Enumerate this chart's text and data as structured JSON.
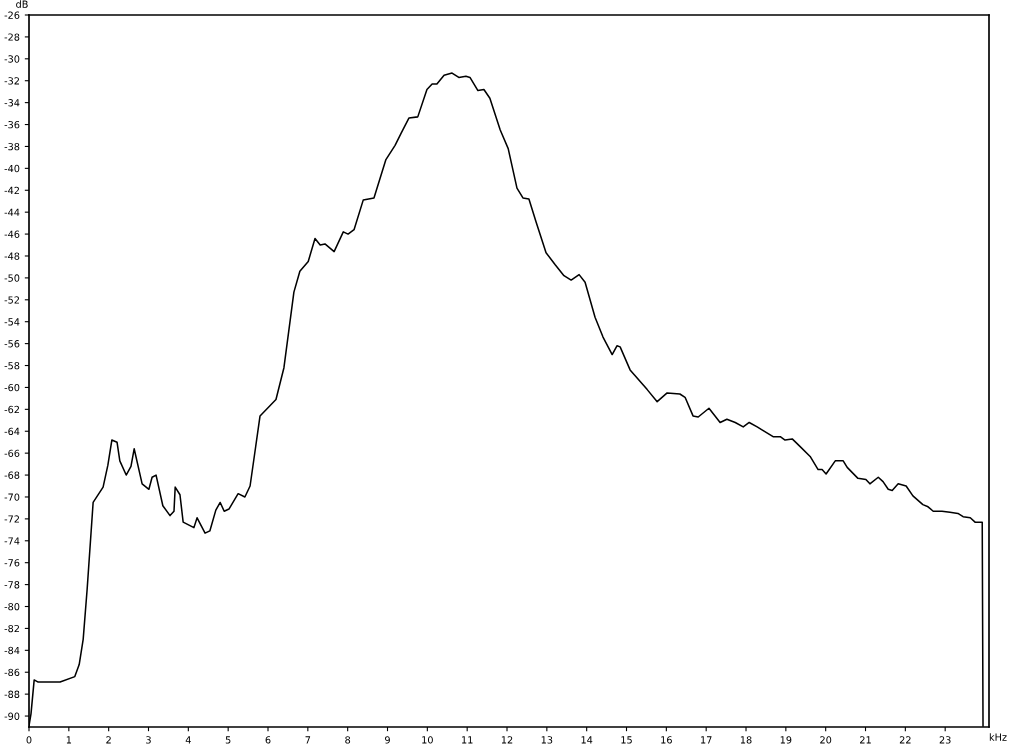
{
  "chart_data": {
    "type": "line",
    "xlabel": "kHz",
    "ylabel": "dB",
    "xlim": [
      0,
      24.1
    ],
    "ylim": [
      -91,
      -26
    ],
    "xticks": [
      0,
      1,
      2,
      3,
      4,
      5,
      6,
      7,
      8,
      9,
      10,
      11,
      12,
      13,
      14,
      15,
      16,
      17,
      18,
      19,
      20,
      21,
      22,
      23
    ],
    "yticks": [
      -90,
      -88,
      -86,
      -84,
      -82,
      -80,
      -78,
      -76,
      -74,
      -72,
      -70,
      -68,
      -66,
      -64,
      -62,
      -60,
      -58,
      -56,
      -54,
      -52,
      -50,
      -48,
      -46,
      -44,
      -42,
      -40,
      -38,
      -36,
      -34,
      -32,
      -30,
      -28,
      -26
    ],
    "grid": false,
    "legend": false,
    "marker": "none",
    "line_style": "solid",
    "series": [
      {
        "color": "#000000",
        "x": [
          0,
          0.05,
          0.13,
          0.23,
          0.78,
          1.15,
          1.26,
          1.36,
          1.46,
          1.61,
          1.86,
          1.98,
          2.08,
          2.21,
          2.28,
          2.44,
          2.56,
          2.64,
          2.84,
          3.01,
          3.09,
          3.19,
          3.36,
          3.54,
          3.64,
          3.67,
          3.79,
          3.87,
          4.14,
          4.22,
          4.42,
          4.54,
          4.69,
          4.8,
          4.9,
          5.02,
          5.25,
          5.42,
          5.55,
          5.8,
          6.2,
          6.4,
          6.65,
          6.8,
          7.01,
          7.18,
          7.31,
          7.43,
          7.66,
          7.89,
          8.01,
          8.16,
          8.39,
          8.66,
          8.96,
          9.19,
          9.34,
          9.54,
          9.76,
          9.99,
          10.12,
          10.24,
          10.42,
          10.62,
          10.79,
          10.97,
          11.07,
          11.27,
          11.42,
          11.57,
          11.83,
          12.03,
          12.25,
          12.4,
          12.55,
          12.73,
          12.98,
          13.21,
          13.43,
          13.61,
          13.81,
          13.96,
          14.21,
          14.41,
          14.64,
          14.76,
          14.84,
          15.09,
          15.52,
          15.77,
          16.02,
          16.34,
          16.47,
          16.67,
          16.8,
          17.07,
          17.35,
          17.52,
          17.73,
          17.93,
          18.08,
          18.28,
          18.68,
          18.86,
          18.98,
          19.16,
          19.36,
          19.61,
          19.81,
          19.91,
          20.01,
          20.24,
          20.44,
          20.54,
          20.81,
          21.01,
          21.11,
          21.32,
          21.44,
          21.57,
          21.67,
          21.82,
          22.02,
          22.19,
          22.44,
          22.57,
          22.7,
          22.92,
          23.12,
          23.32,
          23.45,
          23.63,
          23.75,
          23.93,
          23.95
        ],
        "values": [
          -90.9,
          -89.8,
          -86.7,
          -86.9,
          -86.9,
          -86.4,
          -85.3,
          -83,
          -78.4,
          -70.5,
          -69.1,
          -67.1,
          -64.8,
          -65,
          -66.7,
          -68,
          -67.2,
          -65.6,
          -68.8,
          -69.3,
          -68.2,
          -68,
          -70.8,
          -71.7,
          -71.3,
          -69.1,
          -69.8,
          -72.3,
          -72.8,
          -71.9,
          -73.3,
          -73.1,
          -71.2,
          -70.5,
          -71.3,
          -71.1,
          -69.7,
          -70,
          -69,
          -62.6,
          -61.1,
          -58.2,
          -51.3,
          -49.4,
          -48.5,
          -46.4,
          -47,
          -46.9,
          -47.6,
          -45.8,
          -46,
          -45.6,
          -42.9,
          -42.7,
          -39.2,
          -37.9,
          -36.8,
          -35.4,
          -35.3,
          -32.8,
          -32.3,
          -32.3,
          -31.5,
          -31.3,
          -31.7,
          -31.6,
          -31.7,
          -32.9,
          -32.8,
          -33.6,
          -36.5,
          -38.2,
          -41.8,
          -42.7,
          -42.8,
          -44.9,
          -47.7,
          -48.8,
          -49.8,
          -50.2,
          -49.7,
          -50.4,
          -53.6,
          -55.4,
          -57,
          -56.2,
          -56.3,
          -58.4,
          -60.2,
          -61.3,
          -60.5,
          -60.6,
          -60.9,
          -62.6,
          -62.7,
          -61.9,
          -63.2,
          -62.9,
          -63.2,
          -63.6,
          -63.2,
          -63.6,
          -64.5,
          -64.5,
          -64.8,
          -64.7,
          -65.4,
          -66.3,
          -67.5,
          -67.5,
          -67.9,
          -66.7,
          -66.7,
          -67.3,
          -68.3,
          -68.4,
          -68.8,
          -68.2,
          -68.6,
          -69.3,
          -69.4,
          -68.8,
          -69,
          -69.9,
          -70.7,
          -70.9,
          -71.3,
          -71.3,
          -71.4,
          -71.5,
          -71.8,
          -71.9,
          -72.3,
          -72.3,
          -90.9
        ]
      }
    ]
  }
}
